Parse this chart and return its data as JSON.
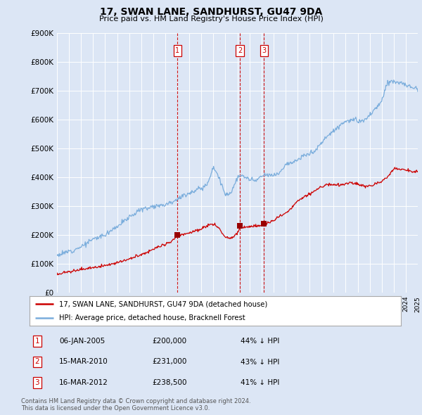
{
  "title": "17, SWAN LANE, SANDHURST, GU47 9DA",
  "subtitle": "Price paid vs. HM Land Registry's House Price Index (HPI)",
  "ylim": [
    0,
    900000
  ],
  "yticks": [
    0,
    100000,
    200000,
    300000,
    400000,
    500000,
    600000,
    700000,
    800000,
    900000
  ],
  "ytick_labels": [
    "£0",
    "£100K",
    "£200K",
    "£300K",
    "£400K",
    "£500K",
    "£600K",
    "£700K",
    "£800K",
    "£900K"
  ],
  "background_color": "#dce6f5",
  "plot_bg_color": "#dce6f5",
  "grid_color": "#ffffff",
  "red_line_color": "#cc0000",
  "blue_line_color": "#7aaddc",
  "transaction_dates": [
    2005.02,
    2010.21,
    2012.21
  ],
  "transaction_prices": [
    200000,
    231000,
    238500
  ],
  "transaction_labels": [
    "1",
    "2",
    "3"
  ],
  "legend_label_red": "17, SWAN LANE, SANDHURST, GU47 9DA (detached house)",
  "legend_label_blue": "HPI: Average price, detached house, Bracknell Forest",
  "table_data": [
    {
      "num": "1",
      "date": "06-JAN-2005",
      "price": "£200,000",
      "hpi": "44% ↓ HPI"
    },
    {
      "num": "2",
      "date": "15-MAR-2010",
      "price": "£231,000",
      "hpi": "43% ↓ HPI"
    },
    {
      "num": "3",
      "date": "16-MAR-2012",
      "price": "£238,500",
      "hpi": "41% ↓ HPI"
    }
  ],
  "footer": "Contains HM Land Registry data © Crown copyright and database right 2024.\nThis data is licensed under the Open Government Licence v3.0.",
  "xmin": 1995,
  "xmax": 2025
}
